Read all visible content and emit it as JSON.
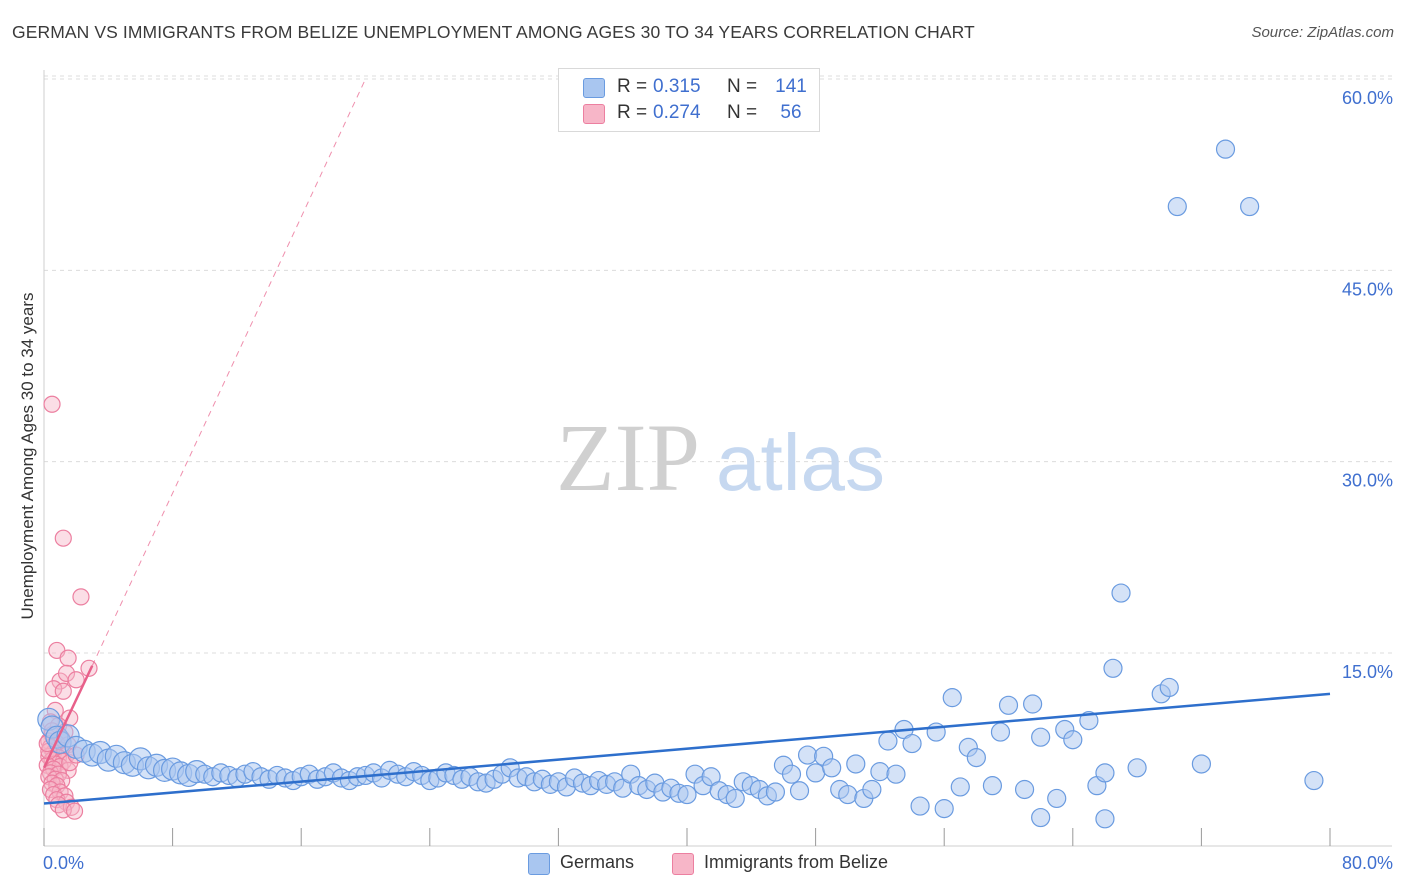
{
  "title": "GERMAN VS IMMIGRANTS FROM BELIZE UNEMPLOYMENT AMONG AGES 30 TO 34 YEARS CORRELATION CHART",
  "source": "Source: ZipAtlas.com",
  "watermark": {
    "zip": "ZIP",
    "atlas": "atlas"
  },
  "legend": {
    "series1": {
      "r_label": "R =",
      "r_value": "0.315",
      "n_label": "N =",
      "n_value": "141"
    },
    "series2": {
      "r_label": "R =",
      "r_value": "0.274",
      "n_label": "N =",
      "n_value": "56"
    }
  },
  "colors": {
    "germans_fill": "#a9c6f0",
    "germans_stroke": "#6a9be0",
    "germans_line": "#2e6fcc",
    "belize_fill": "#f7b6c8",
    "belize_stroke": "#ec7fa0",
    "belize_line": "#e8608a",
    "axis_label": "#3f6fcf",
    "grid": "#dcdcdc"
  },
  "chart_data": {
    "type": "scatter",
    "title": "GERMAN VS IMMIGRANTS FROM BELIZE UNEMPLOYMENT AMONG AGES 30 TO 34 YEARS CORRELATION CHART",
    "xlabel": "",
    "ylabel": "Unemployment Among Ages 30 to 34 years",
    "xlim": [
      0,
      80
    ],
    "ylim": [
      0,
      62
    ],
    "x_tick_labels": {
      "min": "0.0%",
      "max": "80.0%"
    },
    "y_ticks": [
      15,
      30,
      45,
      60
    ],
    "y_tick_labels": [
      "15.0%",
      "30.0%",
      "45.0%",
      "60.0%"
    ],
    "grid": true,
    "legend_position": "top-center",
    "series": [
      {
        "name": "Germans",
        "r": 0.315,
        "n": 141,
        "trend": {
          "x0": 0,
          "y0": 3.2,
          "x1": 80,
          "y1": 11.8
        },
        "points": [
          [
            0.3,
            9.8
          ],
          [
            0.5,
            9.2
          ],
          [
            0.8,
            8.4
          ],
          [
            1.0,
            8.0
          ],
          [
            1.5,
            8.5
          ],
          [
            2.0,
            7.6
          ],
          [
            2.5,
            7.3
          ],
          [
            3.0,
            7.0
          ],
          [
            3.5,
            7.2
          ],
          [
            4.0,
            6.6
          ],
          [
            4.5,
            6.9
          ],
          [
            5.0,
            6.4
          ],
          [
            5.5,
            6.2
          ],
          [
            6.0,
            6.7
          ],
          [
            6.5,
            6.0
          ],
          [
            7.0,
            6.2
          ],
          [
            7.5,
            5.8
          ],
          [
            8.0,
            5.9
          ],
          [
            8.5,
            5.6
          ],
          [
            9.0,
            5.4
          ],
          [
            9.5,
            5.7
          ],
          [
            10.0,
            5.5
          ],
          [
            10.5,
            5.3
          ],
          [
            11.0,
            5.6
          ],
          [
            11.5,
            5.4
          ],
          [
            12.0,
            5.2
          ],
          [
            12.5,
            5.5
          ],
          [
            13.0,
            5.7
          ],
          [
            13.5,
            5.3
          ],
          [
            14.0,
            5.1
          ],
          [
            14.5,
            5.4
          ],
          [
            15.0,
            5.2
          ],
          [
            15.5,
            5.0
          ],
          [
            16.0,
            5.3
          ],
          [
            16.5,
            5.5
          ],
          [
            17.0,
            5.1
          ],
          [
            17.5,
            5.3
          ],
          [
            18.0,
            5.6
          ],
          [
            18.5,
            5.2
          ],
          [
            19.0,
            5.0
          ],
          [
            19.5,
            5.3
          ],
          [
            20.0,
            5.4
          ],
          [
            20.5,
            5.6
          ],
          [
            21.0,
            5.2
          ],
          [
            21.5,
            5.8
          ],
          [
            22.0,
            5.5
          ],
          [
            22.5,
            5.3
          ],
          [
            23.0,
            5.7
          ],
          [
            23.5,
            5.4
          ],
          [
            24.0,
            5.0
          ],
          [
            24.5,
            5.2
          ],
          [
            25.0,
            5.6
          ],
          [
            25.5,
            5.4
          ],
          [
            26.0,
            5.1
          ],
          [
            26.5,
            5.3
          ],
          [
            27.0,
            4.9
          ],
          [
            27.5,
            4.8
          ],
          [
            28.0,
            5.1
          ],
          [
            28.5,
            5.5
          ],
          [
            29.0,
            6.0
          ],
          [
            29.5,
            5.2
          ],
          [
            30.0,
            5.3
          ],
          [
            30.5,
            4.9
          ],
          [
            31.0,
            5.1
          ],
          [
            31.5,
            4.7
          ],
          [
            32.0,
            4.9
          ],
          [
            32.5,
            4.5
          ],
          [
            33.0,
            5.2
          ],
          [
            33.5,
            4.8
          ],
          [
            34.0,
            4.6
          ],
          [
            34.5,
            5.0
          ],
          [
            35.0,
            4.7
          ],
          [
            35.5,
            4.9
          ],
          [
            36.0,
            4.4
          ],
          [
            36.5,
            5.5
          ],
          [
            37.0,
            4.6
          ],
          [
            37.5,
            4.3
          ],
          [
            38.0,
            4.8
          ],
          [
            38.5,
            4.1
          ],
          [
            39.0,
            4.4
          ],
          [
            39.5,
            4.0
          ],
          [
            40.0,
            3.9
          ],
          [
            40.5,
            5.5
          ],
          [
            41.0,
            4.6
          ],
          [
            41.5,
            5.3
          ],
          [
            42.0,
            4.2
          ],
          [
            42.5,
            3.9
          ],
          [
            43.0,
            3.6
          ],
          [
            43.5,
            4.9
          ],
          [
            44.0,
            4.6
          ],
          [
            44.5,
            4.3
          ],
          [
            45.0,
            3.8
          ],
          [
            45.5,
            4.1
          ],
          [
            46.0,
            6.2
          ],
          [
            46.5,
            5.5
          ],
          [
            47.0,
            4.2
          ],
          [
            47.5,
            7.0
          ],
          [
            48.0,
            5.6
          ],
          [
            48.5,
            6.9
          ],
          [
            49.0,
            6.0
          ],
          [
            49.5,
            4.3
          ],
          [
            50.0,
            3.9
          ],
          [
            50.5,
            6.3
          ],
          [
            51.0,
            3.6
          ],
          [
            51.5,
            4.3
          ],
          [
            52.0,
            5.7
          ],
          [
            52.5,
            8.1
          ],
          [
            53.0,
            5.5
          ],
          [
            53.5,
            9.0
          ],
          [
            54.0,
            7.9
          ],
          [
            54.5,
            3.0
          ],
          [
            55.5,
            8.8
          ],
          [
            56.0,
            2.8
          ],
          [
            56.5,
            11.5
          ],
          [
            57.0,
            4.5
          ],
          [
            57.5,
            7.6
          ],
          [
            58.0,
            6.8
          ],
          [
            59.0,
            4.6
          ],
          [
            59.5,
            8.8
          ],
          [
            60.0,
            10.9
          ],
          [
            61.0,
            4.3
          ],
          [
            61.5,
            11.0
          ],
          [
            62.0,
            8.4
          ],
          [
            63.0,
            3.6
          ],
          [
            63.5,
            9.0
          ],
          [
            64.0,
            8.2
          ],
          [
            65.0,
            9.7
          ],
          [
            65.5,
            4.6
          ],
          [
            66.0,
            5.6
          ],
          [
            66.5,
            13.8
          ],
          [
            67.0,
            19.7
          ],
          [
            68.0,
            6.0
          ],
          [
            69.5,
            11.8
          ],
          [
            70.0,
            12.3
          ],
          [
            70.5,
            50.0
          ],
          [
            62.0,
            2.1
          ],
          [
            66.0,
            2.0
          ],
          [
            73.5,
            54.5
          ],
          [
            75.0,
            50.0
          ],
          [
            79.0,
            5.0
          ],
          [
            72.0,
            6.3
          ]
        ]
      },
      {
        "name": "Immigrants from Belize",
        "r": 0.274,
        "n": 56,
        "trend": {
          "x0": 0,
          "y0": 6.0,
          "x1": 3.0,
          "y1": 14.0
        },
        "trend_ext": {
          "x0": 3.0,
          "y0": 14.0,
          "x1": 20.0,
          "y1": 60.0
        },
        "points": [
          [
            0.5,
            34.5
          ],
          [
            1.2,
            24.0
          ],
          [
            2.3,
            19.4
          ],
          [
            0.8,
            15.2
          ],
          [
            1.5,
            14.6
          ],
          [
            2.8,
            13.8
          ],
          [
            1.0,
            12.8
          ],
          [
            1.4,
            13.4
          ],
          [
            2.0,
            12.9
          ],
          [
            0.6,
            12.2
          ],
          [
            1.2,
            12.0
          ],
          [
            0.7,
            10.5
          ],
          [
            1.6,
            9.9
          ],
          [
            0.4,
            9.6
          ],
          [
            0.9,
            9.3
          ],
          [
            1.3,
            8.8
          ],
          [
            0.5,
            8.6
          ],
          [
            1.1,
            8.3
          ],
          [
            0.3,
            8.1
          ],
          [
            0.8,
            7.9
          ],
          [
            1.5,
            7.8
          ],
          [
            0.4,
            7.6
          ],
          [
            1.0,
            7.4
          ],
          [
            0.6,
            7.2
          ],
          [
            1.4,
            7.0
          ],
          [
            0.3,
            6.9
          ],
          [
            0.9,
            6.8
          ],
          [
            0.5,
            6.6
          ],
          [
            1.2,
            6.5
          ],
          [
            0.7,
            6.3
          ],
          [
            0.2,
            6.2
          ],
          [
            1.0,
            6.1
          ],
          [
            0.6,
            5.9
          ],
          [
            1.5,
            5.8
          ],
          [
            0.4,
            5.6
          ],
          [
            0.9,
            5.5
          ],
          [
            0.3,
            5.3
          ],
          [
            0.7,
            5.1
          ],
          [
            1.1,
            5.0
          ],
          [
            0.5,
            4.8
          ],
          [
            0.8,
            4.6
          ],
          [
            0.4,
            4.3
          ],
          [
            1.0,
            4.1
          ],
          [
            0.6,
            3.9
          ],
          [
            1.3,
            3.8
          ],
          [
            0.8,
            3.5
          ],
          [
            1.4,
            3.3
          ],
          [
            0.9,
            3.1
          ],
          [
            1.7,
            2.9
          ],
          [
            1.2,
            2.7
          ],
          [
            1.9,
            2.6
          ],
          [
            0.3,
            7.3
          ],
          [
            0.2,
            7.9
          ],
          [
            0.5,
            8.9
          ],
          [
            1.6,
            6.4
          ],
          [
            2.0,
            7.0
          ]
        ]
      }
    ]
  }
}
